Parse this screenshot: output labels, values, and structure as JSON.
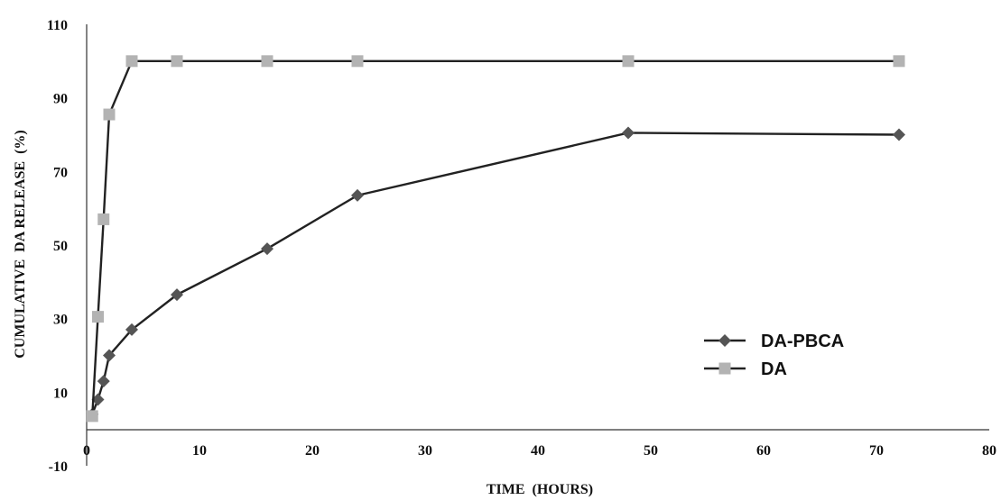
{
  "chart_data": {
    "type": "line",
    "title": "",
    "xlabel": "TIME  (HOURS)",
    "ylabel": "CUMULATIVE  DA RELEASE  (%)",
    "xlim": [
      0,
      80
    ],
    "ylim": [
      -10,
      110
    ],
    "xticks": [
      0,
      10,
      20,
      30,
      40,
      50,
      60,
      70,
      80
    ],
    "yticks": [
      -10,
      10,
      30,
      50,
      70,
      90,
      110
    ],
    "grid": false,
    "legend_position": "bottom-right",
    "series": [
      {
        "name": "DA-PBCA",
        "marker": "diamond",
        "color": "#555555",
        "line_color": "#222222",
        "x": [
          0.5,
          1,
          1.5,
          2,
          4,
          8,
          16,
          24,
          48,
          72
        ],
        "y": [
          4,
          8,
          13,
          20,
          27,
          36.5,
          49,
          63.5,
          80.5,
          80
        ]
      },
      {
        "name": "DA",
        "marker": "square",
        "color": "#b3b3b3",
        "line_color": "#222222",
        "x": [
          0.5,
          1,
          1.5,
          2,
          4,
          8,
          16,
          24,
          48,
          72
        ],
        "y": [
          3.5,
          30.5,
          57,
          85.5,
          100,
          100,
          100,
          100,
          100,
          100
        ]
      }
    ]
  }
}
